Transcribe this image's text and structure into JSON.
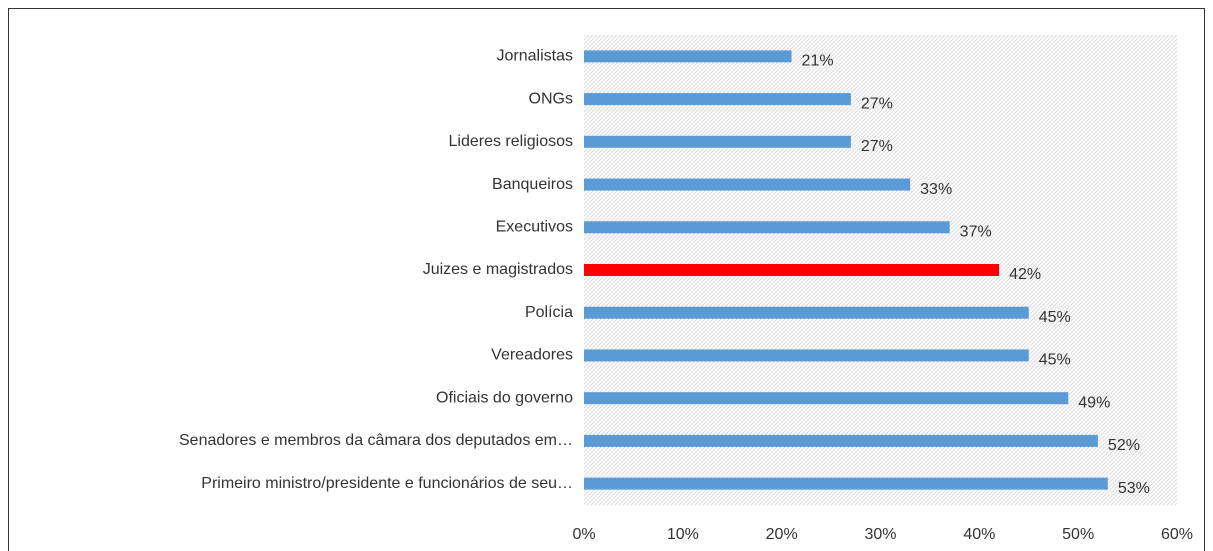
{
  "chart_data": {
    "type": "bar",
    "orientation": "horizontal",
    "categories": [
      "Jornalistas",
      "ONGs",
      "Lideres religiosos",
      "Banqueiros",
      "Executivos",
      "Juizes e magistrados",
      "Polícia",
      "Vereadores",
      "Oficiais do governo",
      "Senadores e membros da câmara dos deputados em…",
      "Primeiro ministro/presidente e funcionários de seu…"
    ],
    "values": [
      21,
      27,
      27,
      33,
      37,
      42,
      45,
      45,
      49,
      52,
      53
    ],
    "value_labels": [
      "21%",
      "27%",
      "27%",
      "33%",
      "37%",
      "42%",
      "45%",
      "45%",
      "49%",
      "52%",
      "53%"
    ],
    "colors": [
      "#5b9bd5",
      "#5b9bd5",
      "#5b9bd5",
      "#5b9bd5",
      "#5b9bd5",
      "#ff0000",
      "#5b9bd5",
      "#5b9bd5",
      "#5b9bd5",
      "#5b9bd5",
      "#5b9bd5"
    ],
    "xlim": [
      0,
      60
    ],
    "xticks": [
      {
        "value": 0,
        "label": "0%"
      },
      {
        "value": 10,
        "label": "10%"
      },
      {
        "value": 20,
        "label": "20%"
      },
      {
        "value": 30,
        "label": "30%"
      },
      {
        "value": 40,
        "label": "40%"
      },
      {
        "value": 50,
        "label": "50%"
      },
      {
        "value": 60,
        "label": "60%"
      }
    ]
  }
}
